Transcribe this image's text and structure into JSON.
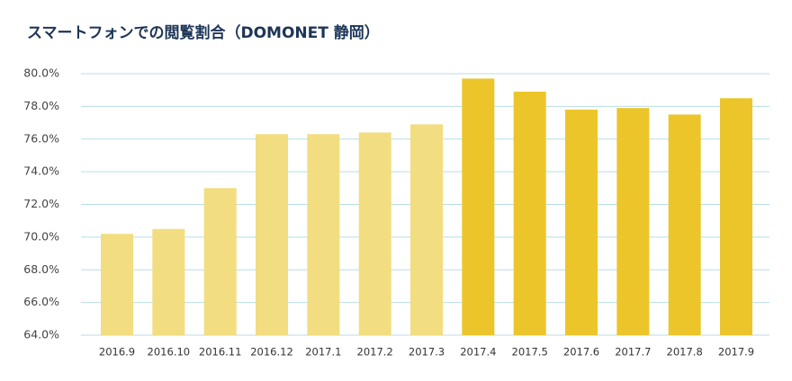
{
  "chart_data": {
    "type": "bar",
    "title": "スマートフォンでの閲覧割合（DOMONET 静岡）",
    "categories": [
      "2016.9",
      "2016.10",
      "2016.11",
      "2016.12",
      "2017.1",
      "2017.2",
      "2017.3",
      "2017.4",
      "2017.5",
      "2017.6",
      "2017.7",
      "2017.8",
      "2017.9"
    ],
    "values": [
      70.2,
      70.5,
      73.0,
      76.3,
      76.3,
      76.4,
      76.9,
      79.7,
      78.9,
      77.8,
      77.9,
      77.5,
      78.5
    ],
    "colors": [
      "#f2dd80",
      "#f2dd80",
      "#f2dd80",
      "#f2dd80",
      "#f2dd80",
      "#f2dd80",
      "#f2dd80",
      "#ecc52a",
      "#ecc52a",
      "#ecc52a",
      "#ecc52a",
      "#ecc52a",
      "#ecc52a"
    ],
    "ylim": [
      64,
      80
    ],
    "yticks": [
      {
        "value": 64,
        "label": "64.0%"
      },
      {
        "value": 66,
        "label": "66.0%"
      },
      {
        "value": 68,
        "label": "68.0%"
      },
      {
        "value": 70,
        "label": "70.0%"
      },
      {
        "value": 72,
        "label": "72.0%"
      },
      {
        "value": 74,
        "label": "74.0%"
      },
      {
        "value": 76,
        "label": "76.0%"
      },
      {
        "value": 78,
        "label": "78.0%"
      },
      {
        "value": 80,
        "label": "80.0%"
      }
    ],
    "grid": true
  }
}
